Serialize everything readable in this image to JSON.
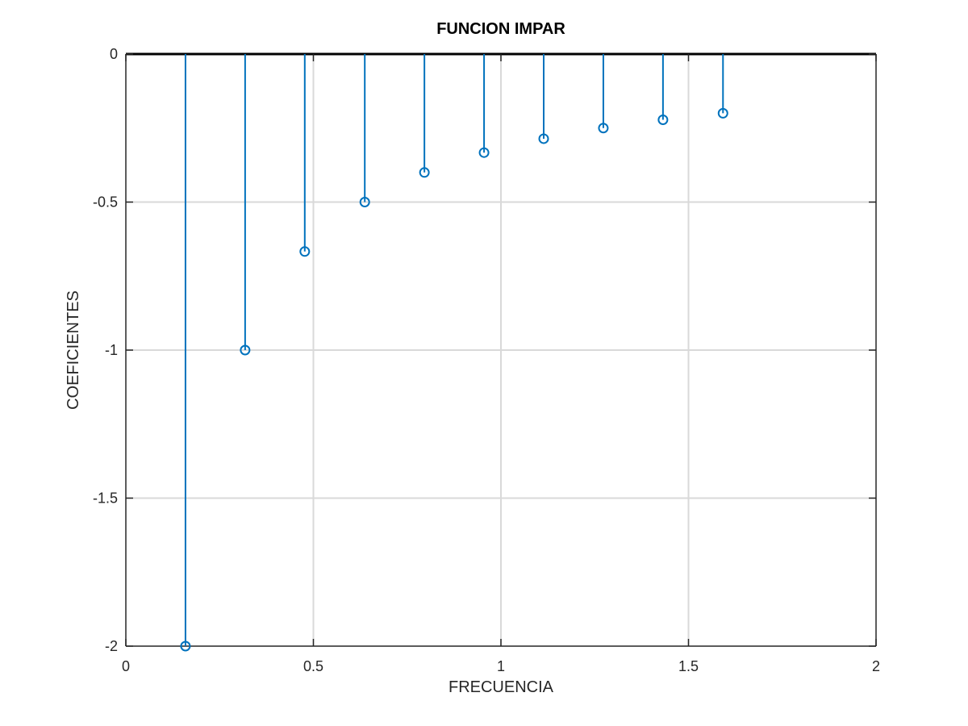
{
  "chart_data": {
    "type": "stem",
    "title": "FUNCION IMPAR",
    "xlabel": "FRECUENCIA",
    "ylabel": "COEFICIENTES",
    "xlim": [
      0,
      2
    ],
    "ylim": [
      -2,
      0
    ],
    "xticks": [
      0,
      0.5,
      1,
      1.5,
      2
    ],
    "xtick_labels": [
      "0",
      "0.5",
      "1",
      "1.5",
      "2"
    ],
    "yticks": [
      -2,
      -1.5,
      -1,
      -0.5,
      0
    ],
    "ytick_labels": [
      "-2",
      "-1.5",
      "-1",
      "-0.5",
      "0"
    ],
    "grid": true,
    "series": [
      {
        "name": "coeficientes",
        "color": "#0072bd",
        "x": [
          0.159,
          0.318,
          0.477,
          0.637,
          0.796,
          0.955,
          1.114,
          1.273,
          1.432,
          1.592
        ],
        "y": [
          -2,
          -1,
          -0.667,
          -0.5,
          -0.4,
          -0.333,
          -0.286,
          -0.25,
          -0.222,
          -0.2
        ]
      }
    ]
  }
}
